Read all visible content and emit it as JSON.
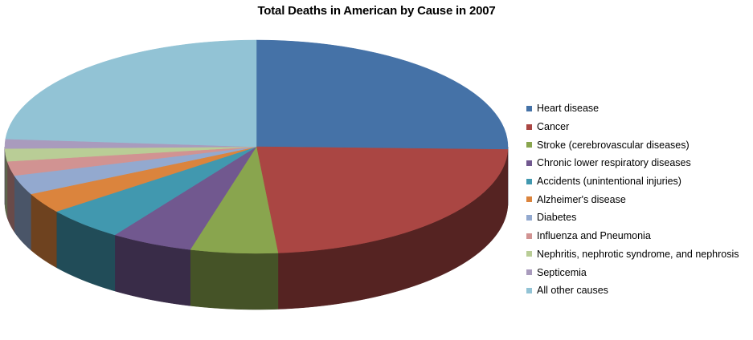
{
  "chart_data": {
    "type": "pie",
    "title": "Total Deaths in American  by Cause in 2007",
    "legend_position": "right",
    "slices": [
      {
        "name": "Heart disease",
        "value": 616067,
        "color": "#4572A7"
      },
      {
        "name": "Cancer",
        "value": 562875,
        "color": "#AA4643"
      },
      {
        "name": "Stroke (cerebrovascular diseases)",
        "value": 135952,
        "color": "#89A54E"
      },
      {
        "name": "Chronic lower respiratory diseases",
        "value": 127924,
        "color": "#71588F"
      },
      {
        "name": "Accidents (unintentional injuries)",
        "value": 123706,
        "color": "#4198AF"
      },
      {
        "name": "Alzheimer's disease",
        "value": 74632,
        "color": "#DB843D"
      },
      {
        "name": "Diabetes",
        "value": 71382,
        "color": "#93A9CF"
      },
      {
        "name": "Influenza and Pneumonia",
        "value": 52717,
        "color": "#D19392"
      },
      {
        "name": "Nephritis, nephrotic syndrome, and nephrosis",
        "value": 46448,
        "color": "#B9CD96"
      },
      {
        "name": "Septicemia",
        "value": 34828,
        "color": "#A99BBD"
      },
      {
        "name": "All other causes",
        "value": 577884,
        "color": "#92C3D5"
      }
    ]
  }
}
